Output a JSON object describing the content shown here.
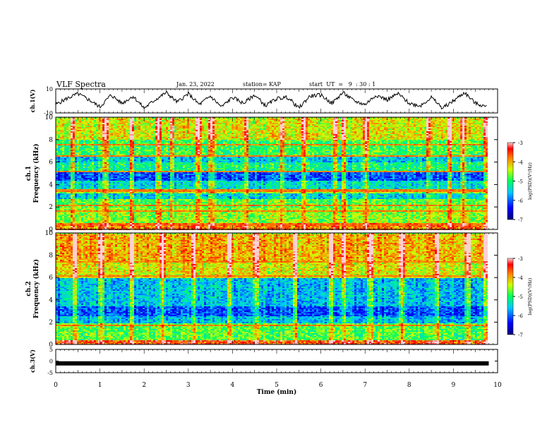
{
  "header": {
    "title": "VLF Spectra",
    "date": "Jan. 23, 2022",
    "station": "station= KAP",
    "start": "start  UT  =   9  : 30 : 1"
  },
  "chart_data": [
    {
      "type": "line",
      "name": "ch1-voltage",
      "ylabel": "ch.1(V)",
      "ylim": [
        -10,
        10
      ],
      "yticks": [
        "10",
        "-10"
      ],
      "xlim": [
        0,
        10
      ],
      "x": [
        0,
        0.25,
        0.5,
        0.75,
        1.0,
        1.25,
        1.5,
        1.75,
        2.0,
        2.25,
        2.5,
        2.75,
        3.0,
        3.25,
        3.5,
        3.75,
        4.0,
        4.25,
        4.5,
        4.75,
        5.0,
        5.25,
        5.5,
        5.75,
        6.0,
        6.25,
        6.5,
        6.75,
        7.0,
        7.25,
        7.5,
        7.75,
        8.0,
        8.25,
        8.5,
        8.75,
        9.0,
        9.25,
        9.5,
        9.75
      ],
      "y": [
        -3,
        2,
        6,
        1,
        -5,
        5,
        -2,
        4,
        -6,
        1,
        7,
        -1,
        6,
        -3,
        4,
        -5,
        3,
        -2,
        5,
        -4,
        2,
        3,
        -6,
        4,
        5,
        -2,
        7,
        0,
        -3,
        5,
        1,
        6,
        -2,
        -4,
        3,
        -6,
        0,
        7,
        -2,
        -5
      ]
    },
    {
      "type": "heatmap",
      "name": "ch1-spectrogram",
      "ylabel": "ch.1\nFrequency (kHz)",
      "ylim": [
        0,
        10
      ],
      "yticks": [
        "0",
        "2",
        "4",
        "6",
        "8",
        "10"
      ],
      "xlim": [
        0,
        10
      ],
      "colorbar": {
        "label": "log(PSD)(V²/Hz)",
        "range": [
          -7,
          -3
        ],
        "ticks": [
          "-3",
          "-4",
          "-5",
          "-6",
          "-7"
        ]
      },
      "bands_khz": [
        {
          "from": 0,
          "to": 0.6,
          "level": -3.8
        },
        {
          "from": 0.6,
          "to": 2.0,
          "level": -4.6
        },
        {
          "from": 2.0,
          "to": 2.8,
          "level": -4.8
        },
        {
          "from": 2.8,
          "to": 3.3,
          "level": -5.5
        },
        {
          "from": 3.3,
          "to": 3.7,
          "level": -4.6
        },
        {
          "from": 3.7,
          "to": 4.4,
          "level": -5.4
        },
        {
          "from": 4.4,
          "to": 5.2,
          "level": -6.1
        },
        {
          "from": 5.2,
          "to": 6.0,
          "level": -5.1
        },
        {
          "from": 6.0,
          "to": 6.5,
          "level": -5.6
        },
        {
          "from": 6.5,
          "to": 8.0,
          "level": -4.9
        },
        {
          "from": 8.0,
          "to": 10.0,
          "level": -4.3
        }
      ],
      "lines_khz": [
        0.5,
        1.7,
        2.2,
        3.5,
        5.2,
        6.6,
        7.6
      ],
      "bursts_min": [
        0.35,
        1.1,
        1.7,
        2.3,
        2.6,
        3.2,
        3.5,
        4.3,
        5.1,
        5.6,
        6.3,
        6.5,
        7.0,
        8.4,
        8.9,
        9.2,
        9.7
      ]
    },
    {
      "type": "heatmap",
      "name": "ch2-spectrogram",
      "ylabel": "ch.2\nFrequency (kHz)",
      "ylim": [
        0,
        10
      ],
      "yticks": [
        "0",
        "2",
        "4",
        "6",
        "8",
        "10"
      ],
      "xlim": [
        0,
        10
      ],
      "colorbar": {
        "label": "log(PSD)(V²/Hz)",
        "range": [
          -7,
          -3
        ],
        "ticks": [
          "-3",
          "-4",
          "-5",
          "-6",
          "-7"
        ]
      },
      "bands_khz": [
        {
          "from": 0,
          "to": 0.5,
          "level": -3.6
        },
        {
          "from": 0.5,
          "to": 2.0,
          "level": -4.8
        },
        {
          "from": 2.0,
          "to": 2.6,
          "level": -5.6
        },
        {
          "from": 2.6,
          "to": 3.5,
          "level": -6.1
        },
        {
          "from": 3.5,
          "to": 6.0,
          "level": -5.6
        },
        {
          "from": 6.0,
          "to": 7.5,
          "level": -4.3
        },
        {
          "from": 7.5,
          "to": 10.0,
          "level": -4.0
        }
      ],
      "lines_khz": [
        1.8,
        6.2,
        7.5
      ],
      "bursts_min": [
        0.4,
        1.0,
        1.7,
        2.4,
        3.1,
        3.9,
        4.5,
        5.4,
        6.2,
        6.5,
        7.1,
        7.8,
        8.6,
        9.3,
        9.7
      ]
    },
    {
      "type": "line",
      "name": "ch3-voltage",
      "ylabel": "ch.3(V)",
      "ylim": [
        -5,
        5
      ],
      "yticks": [
        "5",
        "0",
        "-5"
      ],
      "xlim": [
        0,
        10
      ],
      "xlabel": "Time  (min)",
      "xticks": [
        "0",
        "1",
        "2",
        "3",
        "4",
        "5",
        "6",
        "7",
        "8",
        "9",
        "10"
      ],
      "x": [
        0,
        9.8
      ],
      "y": [
        -1,
        -1
      ]
    }
  ]
}
